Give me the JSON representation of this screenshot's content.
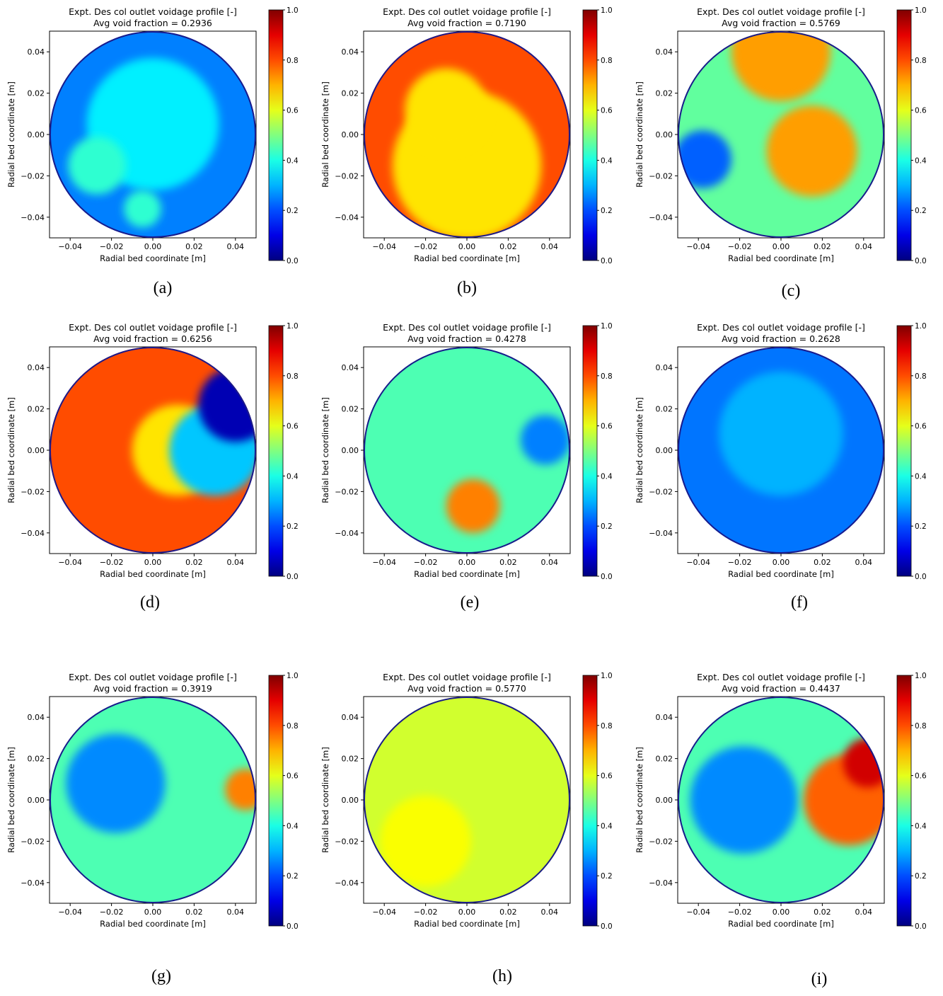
{
  "figure": {
    "panels": [
      {
        "label": "(a)",
        "title": "Expt. Des col outlet voidage profile [-]",
        "subtitle": "Avg void fraction = 0.2936"
      },
      {
        "label": "(b)",
        "title": "Expt. Des col outlet voidage profile [-]",
        "subtitle": "Avg void fraction = 0.7190"
      },
      {
        "label": "(c)",
        "title": "Expt. Des col outlet voidage profile [-]",
        "subtitle": "Avg void fraction = 0.5769"
      },
      {
        "label": "(d)",
        "title": "Expt. Des col outlet voidage profile [-]",
        "subtitle": "Avg void fraction = 0.6256"
      },
      {
        "label": "(e)",
        "title": "Expt. Des col outlet voidage profile [-]",
        "subtitle": "Avg void fraction = 0.4278"
      },
      {
        "label": "(f)",
        "title": "Expt. Des col outlet voidage profile [-]",
        "subtitle": "Avg void fraction = 0.2628"
      },
      {
        "label": "(g)",
        "title": "Expt. Des col outlet voidage profile [-]",
        "subtitle": "Avg void fraction = 0.3919"
      },
      {
        "label": "(h)",
        "title": "Expt. Des col outlet voidage profile [-]",
        "subtitle": "Avg void fraction = 0.5770"
      },
      {
        "label": "(i)",
        "title": "Expt. Des col outlet voidage profile [-]",
        "subtitle": "Avg void fraction = 0.4437"
      }
    ]
  },
  "chart_data": [
    {
      "type": "heatmap",
      "title": "Expt. Des col outlet voidage profile [-]",
      "subtitle": "Avg void fraction = 0.2936",
      "xlabel": "Radial bed coordinate [m]",
      "ylabel": "Radial bed coordinate [m]",
      "xticks": [
        "−0.04",
        "−0.02",
        "0.00",
        "0.02",
        "0.04"
      ],
      "yticks": [
        "−0.04",
        "−0.02",
        "0.00",
        "0.02",
        "0.04"
      ],
      "xlim": [
        -0.05,
        0.05
      ],
      "ylim": [
        -0.05,
        0.05
      ],
      "colorbar": {
        "ticks": [
          "0.0",
          "0.2",
          "0.4",
          "0.6",
          "0.8",
          "1.0"
        ],
        "range": [
          0,
          1
        ],
        "colormap": "jet"
      },
      "base_value": 0.25,
      "regions": [
        {
          "x": 0.0,
          "y": 0.005,
          "r": 0.032,
          "value": 0.36
        },
        {
          "x": -0.027,
          "y": -0.015,
          "r": 0.014,
          "value": 0.42
        },
        {
          "x": -0.005,
          "y": -0.036,
          "r": 0.009,
          "value": 0.42
        }
      ]
    },
    {
      "type": "heatmap",
      "title": "Expt. Des col outlet voidage profile [-]",
      "subtitle": "Avg void fraction = 0.7190",
      "xlabel": "Radial bed coordinate [m]",
      "ylabel": "Radial bed coordinate [m]",
      "xticks": [
        "−0.04",
        "−0.02",
        "0.00",
        "0.02",
        "0.04"
      ],
      "yticks": [
        "−0.04",
        "−0.02",
        "0.00",
        "0.02",
        "0.04"
      ],
      "xlim": [
        -0.05,
        0.05
      ],
      "ylim": [
        -0.05,
        0.05
      ],
      "colorbar": {
        "ticks": [
          "0.0",
          "0.2",
          "0.4",
          "0.6",
          "0.8",
          "1.0"
        ],
        "range": [
          0,
          1
        ],
        "colormap": "jet"
      },
      "base_value": 0.8,
      "regions": [
        {
          "x": 0.0,
          "y": -0.015,
          "r": 0.036,
          "value": 0.65
        },
        {
          "x": -0.01,
          "y": 0.012,
          "r": 0.02,
          "value": 0.65
        }
      ]
    },
    {
      "type": "heatmap",
      "title": "Expt. Des col outlet voidage profile [-]",
      "subtitle": "Avg void fraction = 0.5769",
      "xlabel": "Radial bed coordinate [m]",
      "ylabel": "Radial bed coordinate [m]",
      "xticks": [
        "−0.04",
        "−0.02",
        "0.00",
        "0.02",
        "0.04"
      ],
      "yticks": [
        "−0.04",
        "−0.02",
        "0.00",
        "0.02",
        "0.04"
      ],
      "xlim": [
        -0.05,
        0.05
      ],
      "ylim": [
        -0.05,
        0.05
      ],
      "colorbar": {
        "ticks": [
          "0.0",
          "0.2",
          "0.4",
          "0.6",
          "0.8",
          "1.0"
        ],
        "range": [
          0,
          1
        ],
        "colormap": "jet"
      },
      "base_value": 0.47,
      "regions": [
        {
          "x": 0.0,
          "y": 0.04,
          "r": 0.024,
          "value": 0.72
        },
        {
          "x": 0.015,
          "y": -0.008,
          "r": 0.022,
          "value": 0.72
        },
        {
          "x": -0.038,
          "y": -0.012,
          "r": 0.014,
          "value": 0.22
        }
      ]
    },
    {
      "type": "heatmap",
      "title": "Expt. Des col outlet voidage profile [-]",
      "subtitle": "Avg void fraction = 0.6256",
      "xlabel": "Radial bed coordinate [m]",
      "ylabel": "Radial bed coordinate [m]",
      "xticks": [
        "−0.04",
        "−0.02",
        "0.00",
        "0.02",
        "0.04"
      ],
      "yticks": [
        "−0.04",
        "−0.02",
        "0.00",
        "0.02",
        "0.04"
      ],
      "xlim": [
        -0.05,
        0.05
      ],
      "ylim": [
        -0.05,
        0.05
      ],
      "colorbar": {
        "ticks": [
          "0.0",
          "0.2",
          "0.4",
          "0.6",
          "0.8",
          "1.0"
        ],
        "range": [
          0,
          1
        ],
        "colormap": "jet"
      },
      "base_value": 0.8,
      "regions": [
        {
          "x": 0.012,
          "y": 0.0,
          "r": 0.022,
          "value": 0.65
        },
        {
          "x": 0.03,
          "y": 0.0,
          "r": 0.022,
          "value": 0.32
        },
        {
          "x": 0.04,
          "y": 0.022,
          "r": 0.018,
          "value": 0.05
        }
      ]
    },
    {
      "type": "heatmap",
      "title": "Expt. Des col outlet voidage profile [-]",
      "subtitle": "Avg void fraction = 0.4278",
      "xlabel": "Radial bed coordinate [m]",
      "ylabel": "Radial bed coordinate [m]",
      "xticks": [
        "−0.04",
        "−0.02",
        "0.00",
        "0.02",
        "0.04"
      ],
      "yticks": [
        "−0.04",
        "−0.02",
        "0.00",
        "0.02",
        "0.04"
      ],
      "xlim": [
        -0.05,
        0.05
      ],
      "ylim": [
        -0.05,
        0.05
      ],
      "colorbar": {
        "ticks": [
          "0.0",
          "0.2",
          "0.4",
          "0.6",
          "0.8",
          "1.0"
        ],
        "range": [
          0,
          1
        ],
        "colormap": "jet"
      },
      "base_value": 0.45,
      "regions": [
        {
          "x": 0.003,
          "y": -0.027,
          "r": 0.013,
          "value": 0.75
        },
        {
          "x": 0.038,
          "y": 0.005,
          "r": 0.012,
          "value": 0.25
        }
      ]
    },
    {
      "type": "heatmap",
      "title": "Expt. Des col outlet voidage profile [-]",
      "subtitle": "Avg void fraction = 0.2628",
      "xlabel": "Radial bed coordinate [m]",
      "ylabel": "Radial bed coordinate [m]",
      "xticks": [
        "−0.04",
        "−0.02",
        "0.00",
        "0.02",
        "0.04"
      ],
      "yticks": [
        "−0.04",
        "−0.02",
        "0.00",
        "0.02",
        "0.04"
      ],
      "xlim": [
        -0.05,
        0.05
      ],
      "ylim": [
        -0.05,
        0.05
      ],
      "colorbar": {
        "ticks": [
          "0.0",
          "0.2",
          "0.4",
          "0.6",
          "0.8",
          "1.0"
        ],
        "range": [
          0,
          1
        ],
        "colormap": "jet"
      },
      "base_value": 0.24,
      "regions": [
        {
          "x": 0.0,
          "y": 0.008,
          "r": 0.03,
          "value": 0.3
        }
      ]
    },
    {
      "type": "heatmap",
      "title": "Expt. Des col outlet voidage profile [-]",
      "subtitle": "Avg void fraction = 0.3919",
      "xlabel": "Radial bed coordinate [m]",
      "ylabel": "Radial bed coordinate [m]",
      "xticks": [
        "−0.04",
        "−0.02",
        "0.00",
        "0.02",
        "0.04"
      ],
      "yticks": [
        "−0.04",
        "−0.02",
        "0.00",
        "0.02",
        "0.04"
      ],
      "xlim": [
        -0.05,
        0.05
      ],
      "ylim": [
        -0.05,
        0.05
      ],
      "colorbar": {
        "ticks": [
          "0.0",
          "0.2",
          "0.4",
          "0.6",
          "0.8",
          "1.0"
        ],
        "range": [
          0,
          1
        ],
        "colormap": "jet"
      },
      "base_value": 0.45,
      "regions": [
        {
          "x": -0.018,
          "y": 0.008,
          "r": 0.024,
          "value": 0.26
        },
        {
          "x": 0.045,
          "y": 0.005,
          "r": 0.01,
          "value": 0.75
        }
      ]
    },
    {
      "type": "heatmap",
      "title": "Expt. Des col outlet voidage profile [-]",
      "subtitle": "Avg void fraction = 0.5770",
      "xlabel": "Radial bed coordinate [m]",
      "ylabel": "Radial bed coordinate [m]",
      "xticks": [
        "−0.04",
        "−0.02",
        "0.00",
        "0.02",
        "0.04"
      ],
      "yticks": [
        "−0.04",
        "−0.02",
        "0.00",
        "0.02",
        "0.04"
      ],
      "xlim": [
        -0.05,
        0.05
      ],
      "ylim": [
        -0.05,
        0.05
      ],
      "colorbar": {
        "ticks": [
          "0.0",
          "0.2",
          "0.4",
          "0.6",
          "0.8",
          "1.0"
        ],
        "range": [
          0,
          1
        ],
        "colormap": "jet"
      },
      "base_value": 0.58,
      "regions": [
        {
          "x": -0.02,
          "y": -0.02,
          "r": 0.022,
          "value": 0.62
        }
      ]
    },
    {
      "type": "heatmap",
      "title": "Expt. Des col outlet voidage profile [-]",
      "subtitle": "Avg void fraction = 0.4437",
      "xlabel": "Radial bed coordinate [m]",
      "ylabel": "Radial bed coordinate [m]",
      "xticks": [
        "−0.04",
        "−0.02",
        "0.00",
        "0.02",
        "0.04"
      ],
      "yticks": [
        "−0.04",
        "−0.02",
        "0.00",
        "0.02",
        "0.04"
      ],
      "xlim": [
        -0.05,
        0.05
      ],
      "ylim": [
        -0.05,
        0.05
      ],
      "colorbar": {
        "ticks": [
          "0.0",
          "0.2",
          "0.4",
          "0.6",
          "0.8",
          "1.0"
        ],
        "range": [
          0,
          1
        ],
        "colormap": "jet"
      },
      "base_value": 0.45,
      "regions": [
        {
          "x": -0.018,
          "y": 0.0,
          "r": 0.026,
          "value": 0.26
        },
        {
          "x": 0.033,
          "y": 0.0,
          "r": 0.022,
          "value": 0.78
        },
        {
          "x": 0.042,
          "y": 0.018,
          "r": 0.012,
          "value": 0.92
        }
      ]
    }
  ]
}
